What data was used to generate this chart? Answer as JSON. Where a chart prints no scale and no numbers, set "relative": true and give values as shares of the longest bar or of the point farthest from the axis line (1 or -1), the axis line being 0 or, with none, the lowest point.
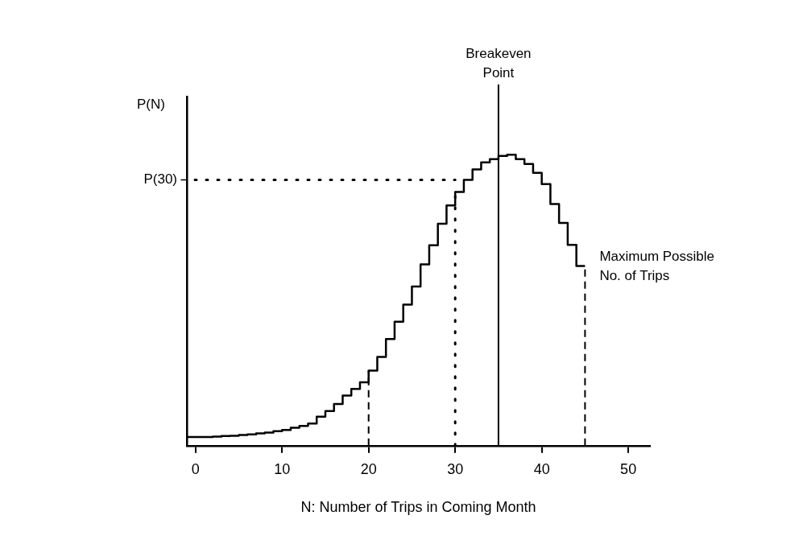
{
  "chart_data": {
    "type": "step",
    "relative": true,
    "xlabel": "N: Number of Trips in Coming Month",
    "ylabel": "P(N)",
    "x": [
      -1,
      0,
      1,
      2,
      3,
      4,
      5,
      6,
      7,
      8,
      9,
      10,
      11,
      12,
      13,
      14,
      15,
      16,
      17,
      18,
      19,
      20,
      21,
      22,
      23,
      24,
      25,
      26,
      27,
      28,
      29,
      30,
      31,
      32,
      33,
      34,
      35,
      36,
      37,
      38,
      39,
      40,
      41,
      42,
      43,
      44,
      45
    ],
    "series": [
      {
        "color": "#000000",
        "values": [
          0.03,
          0.03,
          0.03,
          0.031,
          0.033,
          0.034,
          0.037,
          0.039,
          0.042,
          0.045,
          0.05,
          0.054,
          0.062,
          0.068,
          0.076,
          0.1,
          0.119,
          0.143,
          0.172,
          0.195,
          0.218,
          0.258,
          0.305,
          0.367,
          0.426,
          0.485,
          0.547,
          0.623,
          0.689,
          0.763,
          0.826,
          0.872,
          0.914,
          0.95,
          0.974,
          0.985,
          0.996,
          1,
          0.985,
          0.968,
          0.938,
          0.899,
          0.831,
          0.766,
          0.69,
          0.618,
          0.618
        ]
      }
    ],
    "xlim": [
      -1,
      52.5
    ],
    "xticks": [
      0,
      10,
      20,
      30,
      40,
      50
    ],
    "grid": false,
    "legend": false,
    "marker": "none",
    "line_style": "solid",
    "ref_lines": [
      {
        "axis": "y",
        "value": 0.914,
        "label": "P(30)",
        "line_style": "dotted",
        "color": "#000000"
      },
      {
        "axis": "x",
        "value": 20,
        "line_style": "dashed",
        "color": "#000000"
      },
      {
        "axis": "x",
        "value": 30,
        "line_style": "dotted",
        "color": "#000000"
      },
      {
        "axis": "x",
        "value": 35,
        "label": "Breakeven Point",
        "line_style": "solid",
        "color": "#000000"
      },
      {
        "axis": "x",
        "value": 45,
        "label": "Maximum Possible No. of Trips",
        "line_style": "dashed",
        "color": "#000000"
      }
    ]
  }
}
